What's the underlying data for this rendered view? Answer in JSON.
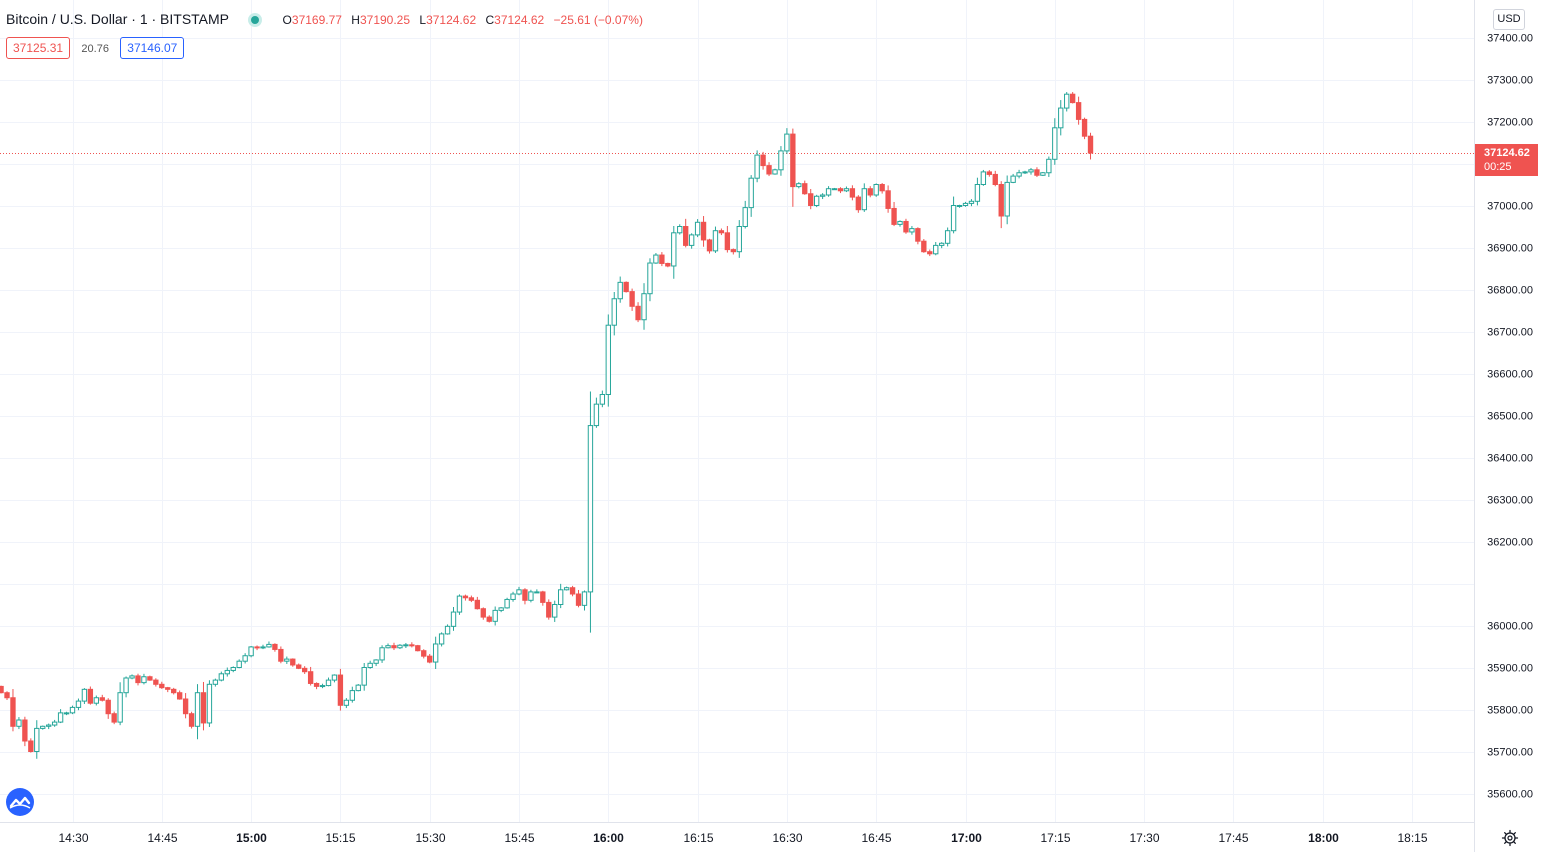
{
  "header": {
    "symbol": "Bitcoin / U.S. Dollar · 1 · BITSTAMP",
    "ohlc": {
      "o_label": "O",
      "o": "37169.77",
      "h_label": "H",
      "h": "37190.25",
      "l_label": "L",
      "l": "37124.62",
      "c_label": "C",
      "c": "37124.62",
      "change": "−25.61 (−0.07%)"
    }
  },
  "trade": {
    "sell": "37125.31",
    "spread": "20.76",
    "buy": "37146.07"
  },
  "price_scale": {
    "currency": "USD",
    "last_price": "37124.62",
    "countdown": "00:25"
  },
  "colors": {
    "up": "#26a69a",
    "down": "#ef5350",
    "grid": "#f0f3fa",
    "axis_text": "#131722",
    "last_line": "#ef5350"
  },
  "icons": {
    "logo": "tradingview-logo-icon",
    "settings": "gear-icon",
    "status": "market-open-dot-icon"
  },
  "chart_data": {
    "type": "candlestick",
    "title": "Bitcoin / U.S. Dollar",
    "exchange": "BITSTAMP",
    "interval": "1",
    "ylim": [
      35540,
      37440
    ],
    "yticks": [
      "37400.00",
      "37300.00",
      "37200.00",
      "37100.00",
      "37000.00",
      "36900.00",
      "36800.00",
      "36700.00",
      "36600.00",
      "36500.00",
      "36400.00",
      "36300.00",
      "36200.00",
      "36000.00",
      "35900.00",
      "35800.00",
      "35700.00",
      "35600.00"
    ],
    "xticks": [
      "14:30",
      "14:45",
      "15:00",
      "15:15",
      "15:30",
      "15:45",
      "16:00",
      "16:15",
      "16:30",
      "16:45",
      "17:00",
      "17:15",
      "17:30",
      "17:45",
      "18:00",
      "18:15"
    ],
    "bold_xticks": [
      "15:00",
      "16:00",
      "17:00",
      "18:00"
    ],
    "last_price": 37124.62,
    "grid": true,
    "close": [
      35840,
      35828,
      35760,
      35775,
      35725,
      35700,
      35755,
      35760,
      35763,
      35770,
      35792,
      35792,
      35805,
      35820,
      35848,
      35815,
      35828,
      35822,
      35790,
      35770,
      35840,
      35875,
      35880,
      35864,
      35878,
      35870,
      35860,
      35852,
      35848,
      35840,
      35825,
      35790,
      35760,
      35840,
      35768,
      35860,
      35870,
      35885,
      35893,
      35900,
      35915,
      35928,
      35949,
      35948,
      35949,
      35955,
      35943,
      35915,
      35920,
      35906,
      35898,
      35890,
      35862,
      35855,
      35857,
      35870,
      35882,
      35810,
      35822,
      35845,
      35858,
      35900,
      35910,
      35918,
      35947,
      35952,
      35947,
      35953,
      35954,
      35952,
      35940,
      35927,
      35913,
      35956,
      35980,
      35998,
      36032,
      36070,
      36066,
      36060,
      36040,
      36020,
      36010,
      36036,
      36042,
      36062,
      36075,
      36085,
      36060,
      36080,
      36080,
      36055,
      36020,
      36050,
      36085,
      36090,
      36075,
      36048,
      36080,
      36476,
      36527,
      36550,
      36715,
      36778,
      36817,
      36795,
      36760,
      36728,
      36790,
      36863,
      36882,
      36862,
      36856,
      36935,
      36950,
      36905,
      36930,
      36960,
      36918,
      36892,
      36940,
      36935,
      36895,
      36890,
      36950,
      36995,
      37065,
      37120,
      37095,
      37075,
      37085,
      37130,
      37170,
      37045,
      37052,
      37028,
      37000,
      37022,
      37025,
      37040,
      37040,
      37035,
      37040,
      37020,
      36990,
      37040,
      37025,
      37050,
      37035,
      36993,
      36955,
      36962,
      36937,
      36945,
      36915,
      36890,
      36885,
      36905,
      36910,
      36940,
      37000,
      37000,
      37005,
      37010,
      37050,
      37080,
      37074,
      37050,
      36975,
      37055,
      37070,
      37078,
      37080,
      37085,
      37072,
      37078,
      37110,
      37185,
      37232,
      37265,
      37245,
      37205,
      37165,
      37125
    ],
    "note": "close values approximate, one candle per minute"
  }
}
